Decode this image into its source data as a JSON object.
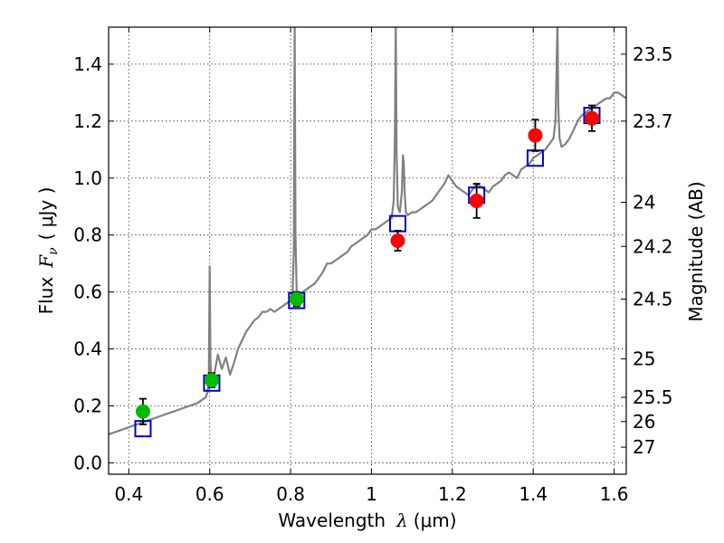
{
  "chart_data": {
    "type": "scatter",
    "xlabel_text": "Wavelength",
    "xlabel_symbol": "λ",
    "xlabel_unit": "(μm)",
    "ylabel_text": "Flux",
    "ylabel_symbol": "F",
    "ylabel_sub": "ν",
    "ylabel_unit": "( μJy )",
    "y2label": "Magnitude (AB)",
    "xlim": [
      0.35,
      1.63
    ],
    "ylim": [
      -0.04,
      1.53
    ],
    "xticks": [
      {
        "value": 0.4,
        "label": "0.4"
      },
      {
        "value": 0.6,
        "label": "0.6"
      },
      {
        "value": 0.8,
        "label": "0.8"
      },
      {
        "value": 1.0,
        "label": "1"
      },
      {
        "value": 1.2,
        "label": "1.2"
      },
      {
        "value": 1.4,
        "label": "1.4"
      },
      {
        "value": 1.6,
        "label": "1.6"
      }
    ],
    "yticks": [
      {
        "value": 0.0,
        "label": "0.0"
      },
      {
        "value": 0.2,
        "label": "0.2"
      },
      {
        "value": 0.4,
        "label": "0.4"
      },
      {
        "value": 0.6,
        "label": "0.6"
      },
      {
        "value": 0.8,
        "label": "0.8"
      },
      {
        "value": 1.0,
        "label": "1.0"
      },
      {
        "value": 1.2,
        "label": "1.2"
      },
      {
        "value": 1.4,
        "label": "1.4"
      }
    ],
    "y2ticks": [
      {
        "flux": 1.435,
        "label": "23.5"
      },
      {
        "flux": 1.2,
        "label": "23.7"
      },
      {
        "flux": 0.915,
        "label": "24"
      },
      {
        "flux": 0.76,
        "label": "24.2"
      },
      {
        "flux": 0.575,
        "label": "24.5"
      },
      {
        "flux": 0.365,
        "label": "25"
      },
      {
        "flux": 0.23,
        "label": "25.5"
      },
      {
        "flux": 0.145,
        "label": "26"
      },
      {
        "flux": 0.055,
        "label": "27"
      }
    ],
    "grid": true,
    "colors": {
      "spectrum": "#808080",
      "model": "#0000cc",
      "obs_red": "#ff0000",
      "obs_green": "#00bb00",
      "error_bar": "#000000"
    },
    "spectrum": {
      "name": "model spectrum",
      "x": [
        0.35,
        0.37,
        0.39,
        0.41,
        0.43,
        0.45,
        0.47,
        0.49,
        0.51,
        0.53,
        0.55,
        0.57,
        0.59,
        0.595,
        0.598,
        0.6,
        0.602,
        0.605,
        0.61,
        0.615,
        0.62,
        0.63,
        0.64,
        0.65,
        0.66,
        0.67,
        0.68,
        0.69,
        0.7,
        0.71,
        0.72,
        0.73,
        0.74,
        0.75,
        0.76,
        0.77,
        0.78,
        0.79,
        0.8,
        0.805,
        0.808,
        0.81,
        0.812,
        0.815,
        0.82,
        0.83,
        0.84,
        0.85,
        0.86,
        0.87,
        0.88,
        0.89,
        0.9,
        0.91,
        0.92,
        0.93,
        0.94,
        0.95,
        0.96,
        0.97,
        0.98,
        0.99,
        1.0,
        1.01,
        1.02,
        1.03,
        1.04,
        1.05,
        1.055,
        1.058,
        1.06,
        1.062,
        1.065,
        1.07,
        1.075,
        1.078,
        1.08,
        1.082,
        1.085,
        1.09,
        1.1,
        1.11,
        1.12,
        1.13,
        1.14,
        1.15,
        1.16,
        1.17,
        1.18,
        1.19,
        1.2,
        1.21,
        1.22,
        1.23,
        1.24,
        1.25,
        1.26,
        1.27,
        1.28,
        1.29,
        1.3,
        1.31,
        1.32,
        1.33,
        1.34,
        1.35,
        1.36,
        1.37,
        1.38,
        1.39,
        1.4,
        1.41,
        1.42,
        1.43,
        1.44,
        1.45,
        1.455,
        1.458,
        1.46,
        1.462,
        1.465,
        1.47,
        1.48,
        1.49,
        1.5,
        1.51,
        1.52,
        1.53,
        1.54,
        1.55,
        1.56,
        1.57,
        1.58,
        1.59,
        1.6,
        1.61,
        1.62,
        1.63
      ],
      "y": [
        0.1,
        0.11,
        0.12,
        0.13,
        0.14,
        0.15,
        0.16,
        0.17,
        0.18,
        0.19,
        0.2,
        0.21,
        0.23,
        0.25,
        0.32,
        0.69,
        0.35,
        0.28,
        0.3,
        0.34,
        0.38,
        0.33,
        0.37,
        0.31,
        0.35,
        0.4,
        0.43,
        0.46,
        0.48,
        0.5,
        0.51,
        0.53,
        0.53,
        0.54,
        0.53,
        0.54,
        0.55,
        0.56,
        0.57,
        0.6,
        0.75,
        1.55,
        0.8,
        0.6,
        0.57,
        0.6,
        0.61,
        0.62,
        0.63,
        0.65,
        0.67,
        0.7,
        0.7,
        0.71,
        0.72,
        0.73,
        0.74,
        0.76,
        0.77,
        0.78,
        0.79,
        0.8,
        0.82,
        0.82,
        0.83,
        0.84,
        0.85,
        0.86,
        0.92,
        1.15,
        1.55,
        1.1,
        0.9,
        0.88,
        0.95,
        1.08,
        1.05,
        0.95,
        0.88,
        0.87,
        0.88,
        0.88,
        0.89,
        0.9,
        0.91,
        0.92,
        0.94,
        0.96,
        0.98,
        1.01,
        0.99,
        0.97,
        0.96,
        0.95,
        0.94,
        0.96,
        0.98,
        0.97,
        0.96,
        0.95,
        0.97,
        0.98,
        0.99,
        1.01,
        1.02,
        1.01,
        1.0,
        1.03,
        1.04,
        1.05,
        1.07,
        1.08,
        1.09,
        1.1,
        1.12,
        1.14,
        1.2,
        1.4,
        1.55,
        1.25,
        1.14,
        1.11,
        1.12,
        1.14,
        1.17,
        1.2,
        1.22,
        1.23,
        1.24,
        1.25,
        1.26,
        1.27,
        1.28,
        1.28,
        1.3,
        1.3,
        1.29,
        1.28
      ]
    },
    "model_points": {
      "name": "model photometry",
      "x": [
        0.435,
        0.605,
        0.815,
        1.065,
        1.26,
        1.405,
        1.545
      ],
      "y": [
        0.12,
        0.28,
        0.57,
        0.84,
        0.94,
        1.07,
        1.22
      ]
    },
    "observed": [
      {
        "x": 0.435,
        "y": 0.18,
        "err": 0.045,
        "color": "green"
      },
      {
        "x": 0.605,
        "y": 0.29,
        "err": 0.025,
        "color": "green"
      },
      {
        "x": 0.815,
        "y": 0.575,
        "err": 0.025,
        "color": "green"
      },
      {
        "x": 1.065,
        "y": 0.78,
        "err": 0.035,
        "color": "red"
      },
      {
        "x": 1.26,
        "y": 0.92,
        "err": 0.06,
        "color": "red"
      },
      {
        "x": 1.405,
        "y": 1.15,
        "err": 0.055,
        "color": "red"
      },
      {
        "x": 1.545,
        "y": 1.21,
        "err": 0.045,
        "color": "red"
      }
    ]
  }
}
